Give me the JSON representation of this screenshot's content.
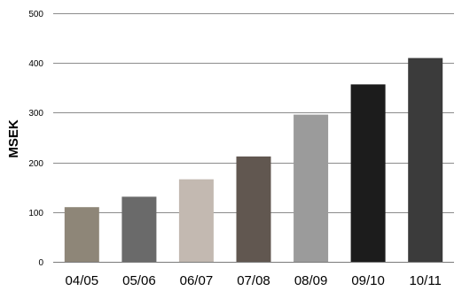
{
  "chart_data": {
    "type": "bar",
    "categories": [
      "04/05",
      "05/06",
      "06/07",
      "07/08",
      "08/09",
      "09/10",
      "10/11"
    ],
    "values": [
      110,
      131,
      166,
      212,
      296,
      357,
      410
    ],
    "ylabel": "MSEK",
    "ylim": [
      0,
      500
    ],
    "yticks": [
      0,
      100,
      200,
      300,
      400,
      500
    ],
    "grid": true,
    "bar_colors": [
      "#8e8678",
      "#6a6a6a",
      "#c3b9b1",
      "#615750",
      "#9b9b9b",
      "#1c1c1c",
      "#3b3b3b"
    ]
  }
}
